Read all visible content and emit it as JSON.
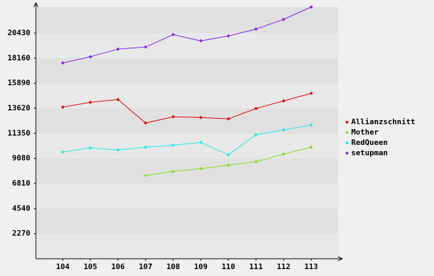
{
  "chart_data": {
    "type": "line",
    "categories": [
      "104",
      "105",
      "106",
      "107",
      "108",
      "109",
      "110",
      "111",
      "112",
      "113"
    ],
    "series": [
      {
        "name": "Allianzschnitt",
        "color": "#e00000",
        "values": [
          13725,
          14163,
          14413,
          12287,
          12850,
          12787,
          12662,
          13600,
          14288,
          14976
        ]
      },
      {
        "name": "Mother",
        "color": "#80e020",
        "values": [
          null,
          null,
          null,
          7535,
          7910,
          8160,
          8473,
          8785,
          9473,
          10098
        ]
      },
      {
        "name": "RedQueen",
        "color": "#20e8e8",
        "values": [
          9661,
          10036,
          9848,
          10098,
          10286,
          10536,
          9411,
          11224,
          11662,
          12100
        ]
      },
      {
        "name": "setupman",
        "color": "#8020e0",
        "values": [
          17727,
          18290,
          18978,
          19166,
          20291,
          19728,
          20166,
          20791,
          21667,
          22792
        ]
      }
    ],
    "ylim": [
      0,
      22800
    ],
    "yticks": [
      2270,
      4540,
      6810,
      9080,
      11350,
      13620,
      15890,
      18160,
      20430
    ],
    "grid": true,
    "legend": "right"
  }
}
